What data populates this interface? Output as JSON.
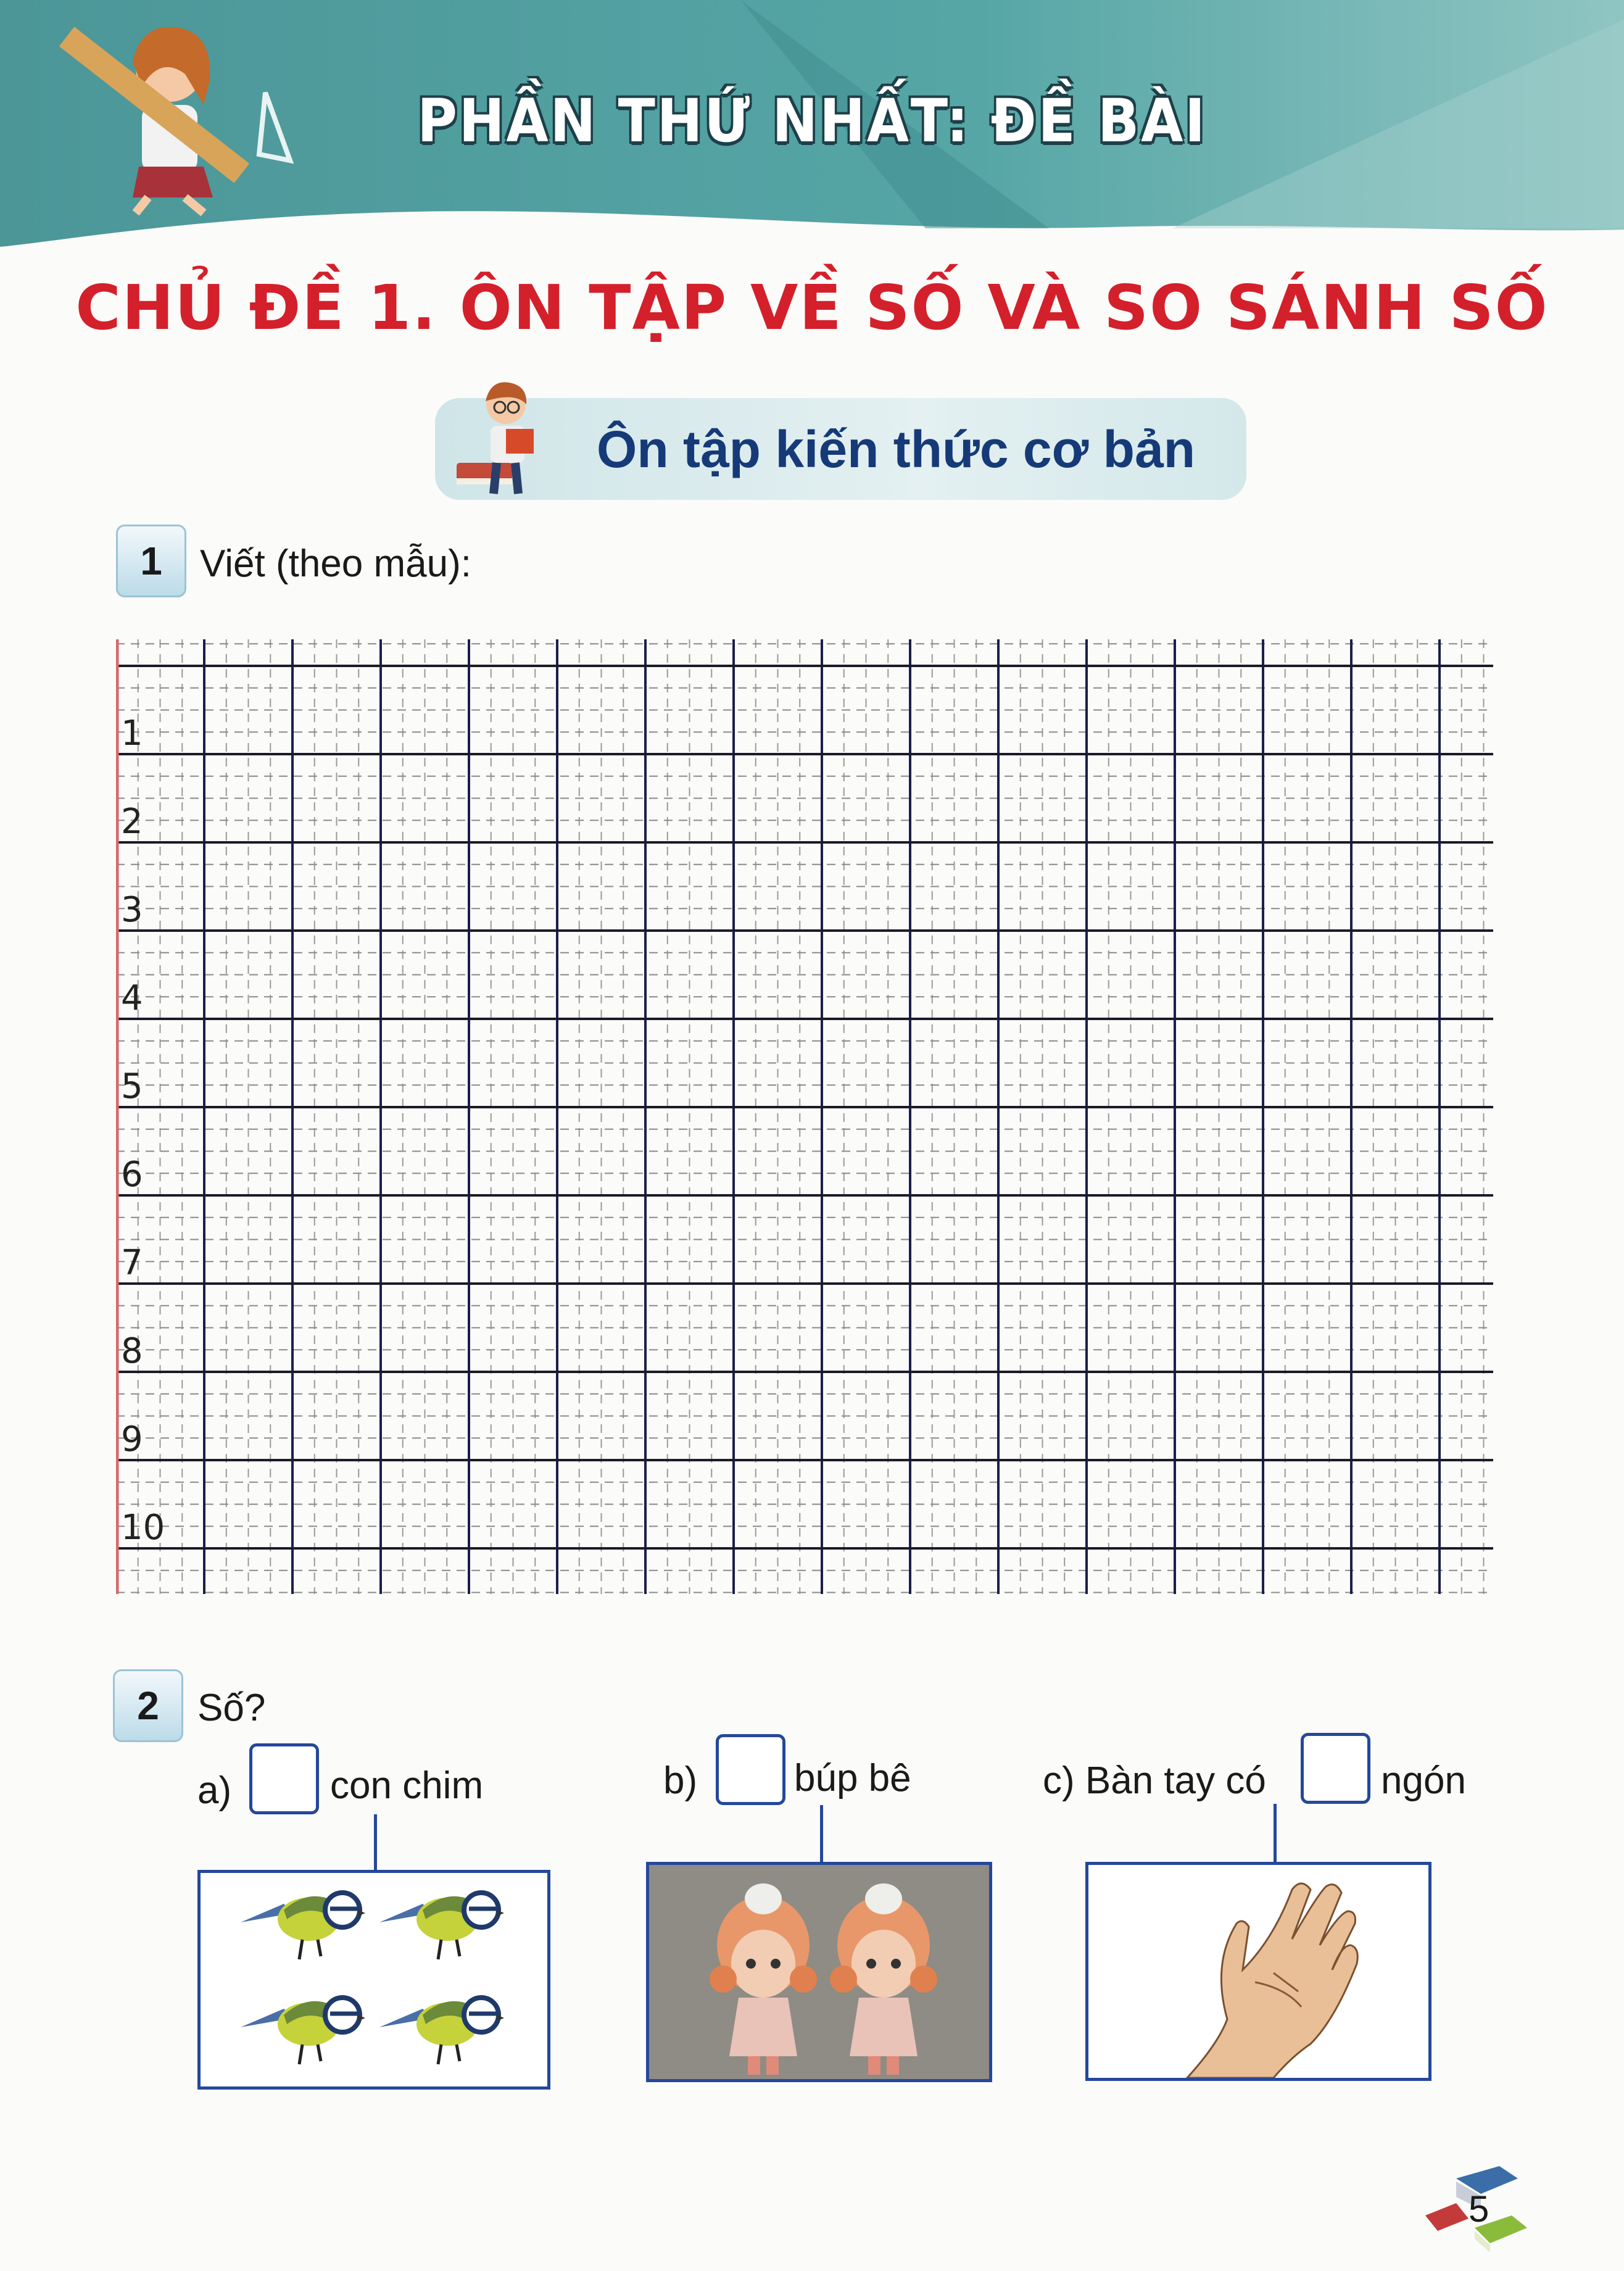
{
  "header": {
    "part_title": "PHẦN THỨ NHẤT: ĐỀ BÀI",
    "band_color": "#4f9ea0"
  },
  "topic_title": "CHỦ ĐỀ 1. ÔN TẬP VỀ SỐ VÀ SO SÁNH SỐ",
  "section_pill": {
    "label": "Ôn tập kiến thức cơ bản"
  },
  "exercise1": {
    "number": "1",
    "instruction": "Viết (theo mẫu):",
    "row_labels": [
      "1",
      "2",
      "3",
      "4",
      "5",
      "6",
      "7",
      "8",
      "9",
      "10"
    ]
  },
  "exercise2": {
    "number": "2",
    "instruction": "Số?",
    "parts": [
      {
        "label": "a)",
        "after_text": "con chim",
        "image": "four-birds",
        "answer": ""
      },
      {
        "label": "b)",
        "after_text": "búp bê",
        "image": "two-dolls",
        "answer": ""
      },
      {
        "label": "c) Bàn tay có",
        "after_text": "ngón",
        "image": "hand",
        "answer": ""
      }
    ]
  },
  "footer": {
    "page_number": "5"
  },
  "colors": {
    "title_red": "#d3202b",
    "navy": "#163a78",
    "frame_blue": "#24489a"
  }
}
